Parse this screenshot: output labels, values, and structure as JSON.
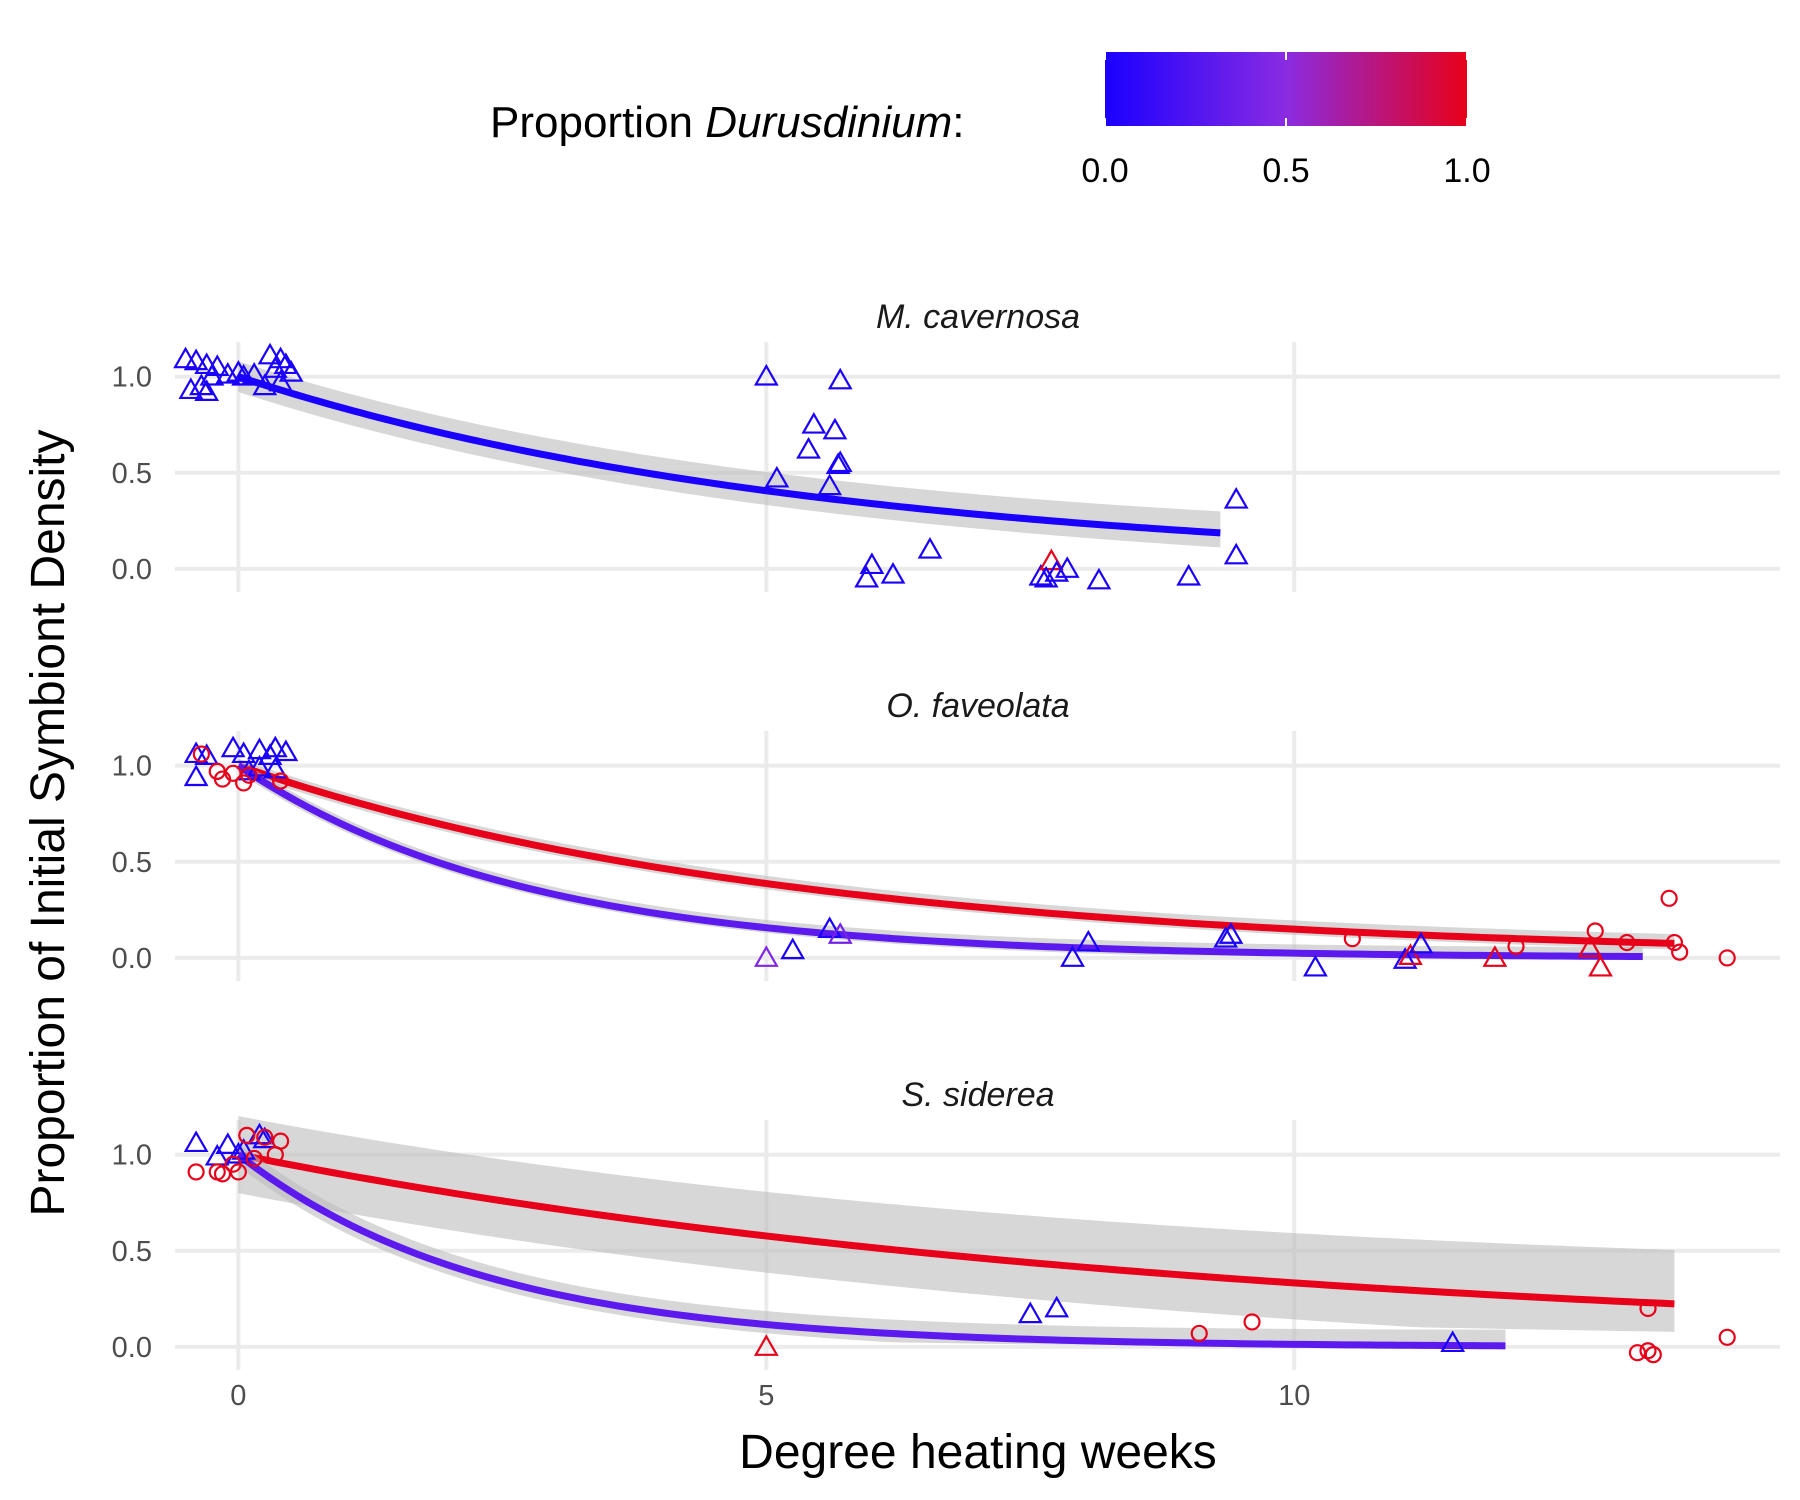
{
  "legend": {
    "title_prefix": "Proportion ",
    "title_italic": "Durusdinium",
    "title_suffix": ":",
    "scale": {
      "low": "#1a00ff",
      "mid": "#8a2be2",
      "high": "#e8001a"
    },
    "ticks": [
      "0.0",
      "0.5",
      "1.0"
    ]
  },
  "chart_data": {
    "type": "scatter",
    "xlabel": "Degree heating weeks",
    "ylabel": "Proportion of Initial Symbiont Density",
    "xlim": [
      -0.6,
      14.6
    ],
    "ylim": [
      -0.12,
      1.18
    ],
    "x_ticks": [
      0,
      5,
      10
    ],
    "y_ticks": [
      0.0,
      0.5,
      1.0
    ],
    "x_tick_labels": [
      "0",
      "5",
      "10"
    ],
    "y_tick_labels": [
      "0.0",
      "0.5",
      "1.0"
    ],
    "grid": true,
    "legend_position": "top",
    "color_scale": "Proportion Durusdinium (0 = blue, 1 = red)",
    "panels": [
      {
        "title": "M. cavernosa",
        "fits": [
          {
            "color_value": 0.0,
            "rate": 0.18,
            "xmax": 9.3,
            "ci": 0.08
          }
        ],
        "points": [
          {
            "x": -0.5,
            "y": 1.09,
            "shape": "triangle",
            "d": 0.0
          },
          {
            "x": -0.4,
            "y": 1.08,
            "shape": "triangle",
            "d": 0.0
          },
          {
            "x": -0.3,
            "y": 1.06,
            "shape": "triangle",
            "d": 0.0
          },
          {
            "x": -0.2,
            "y": 1.05,
            "shape": "triangle",
            "d": 0.0
          },
          {
            "x": -0.45,
            "y": 0.93,
            "shape": "triangle",
            "d": 0.0
          },
          {
            "x": -0.35,
            "y": 0.95,
            "shape": "triangle",
            "d": 0.0
          },
          {
            "x": -0.3,
            "y": 0.92,
            "shape": "triangle",
            "d": 0.0
          },
          {
            "x": -0.25,
            "y": 1.0,
            "shape": "triangle",
            "d": 0.0
          },
          {
            "x": -0.1,
            "y": 1.01,
            "shape": "triangle",
            "d": 0.0
          },
          {
            "x": 0.0,
            "y": 1.02,
            "shape": "triangle",
            "d": 0.0
          },
          {
            "x": 0.05,
            "y": 1.0,
            "shape": "triangle",
            "d": 0.0
          },
          {
            "x": 0.15,
            "y": 1.01,
            "shape": "triangle",
            "d": 0.0
          },
          {
            "x": 0.25,
            "y": 0.95,
            "shape": "triangle",
            "d": 0.0
          },
          {
            "x": 0.3,
            "y": 1.11,
            "shape": "triangle",
            "d": 0.0
          },
          {
            "x": 0.35,
            "y": 1.04,
            "shape": "triangle",
            "d": 0.0
          },
          {
            "x": 0.4,
            "y": 1.09,
            "shape": "triangle",
            "d": 0.0
          },
          {
            "x": 0.45,
            "y": 1.06,
            "shape": "triangle",
            "d": 0.0
          },
          {
            "x": 0.5,
            "y": 1.02,
            "shape": "triangle",
            "d": 0.0
          },
          {
            "x": 0.4,
            "y": 0.97,
            "shape": "triangle",
            "d": 0.0
          },
          {
            "x": 5.0,
            "y": 1.0,
            "shape": "triangle",
            "d": 0.0
          },
          {
            "x": 5.7,
            "y": 0.98,
            "shape": "triangle",
            "d": 0.0
          },
          {
            "x": 5.45,
            "y": 0.75,
            "shape": "triangle",
            "d": 0.0
          },
          {
            "x": 5.65,
            "y": 0.72,
            "shape": "triangle",
            "d": 0.0
          },
          {
            "x": 5.4,
            "y": 0.62,
            "shape": "triangle",
            "d": 0.0
          },
          {
            "x": 5.7,
            "y": 0.55,
            "shape": "triangle",
            "d": 0.0
          },
          {
            "x": 5.68,
            "y": 0.54,
            "shape": "triangle",
            "d": 0.0
          },
          {
            "x": 5.1,
            "y": 0.47,
            "shape": "triangle",
            "d": 0.0
          },
          {
            "x": 5.6,
            "y": 0.43,
            "shape": "triangle",
            "d": 0.0
          },
          {
            "x": 6.0,
            "y": 0.02,
            "shape": "triangle",
            "d": 0.0
          },
          {
            "x": 5.95,
            "y": -0.05,
            "shape": "triangle",
            "d": 0.0
          },
          {
            "x": 6.2,
            "y": -0.03,
            "shape": "triangle",
            "d": 0.0
          },
          {
            "x": 6.55,
            "y": 0.1,
            "shape": "triangle",
            "d": 0.0
          },
          {
            "x": 7.6,
            "y": -0.04,
            "shape": "triangle",
            "d": 0.0
          },
          {
            "x": 7.7,
            "y": 0.04,
            "shape": "triangle",
            "d": 1.0
          },
          {
            "x": 7.65,
            "y": -0.05,
            "shape": "triangle",
            "d": 0.0
          },
          {
            "x": 7.75,
            "y": -0.02,
            "shape": "triangle",
            "d": 0.0
          },
          {
            "x": 7.85,
            "y": 0.0,
            "shape": "triangle",
            "d": 0.0
          },
          {
            "x": 8.15,
            "y": -0.06,
            "shape": "triangle",
            "d": 0.0
          },
          {
            "x": 9.0,
            "y": -0.04,
            "shape": "triangle",
            "d": 0.0
          },
          {
            "x": 9.45,
            "y": 0.36,
            "shape": "triangle",
            "d": 0.0
          },
          {
            "x": 9.45,
            "y": 0.07,
            "shape": "triangle",
            "d": 0.0
          }
        ]
      },
      {
        "title": "O. faveolata",
        "fits": [
          {
            "color_value": 1.0,
            "rate": 0.19,
            "xmax": 13.6,
            "ci": 0.035
          },
          {
            "color_value": 0.3,
            "rate": 0.37,
            "xmax": 13.3,
            "ci": 0.035
          }
        ],
        "points": [
          {
            "x": -0.4,
            "y": 1.06,
            "shape": "triangle",
            "d": 0.0
          },
          {
            "x": -0.3,
            "y": 1.05,
            "shape": "triangle",
            "d": 0.0
          },
          {
            "x": -0.05,
            "y": 1.09,
            "shape": "triangle",
            "d": 0.0
          },
          {
            "x": 0.05,
            "y": 1.06,
            "shape": "triangle",
            "d": 0.0
          },
          {
            "x": 0.2,
            "y": 1.08,
            "shape": "triangle",
            "d": 0.0
          },
          {
            "x": 0.3,
            "y": 1.05,
            "shape": "triangle",
            "d": 0.0
          },
          {
            "x": 0.35,
            "y": 1.09,
            "shape": "triangle",
            "d": 0.0
          },
          {
            "x": 0.45,
            "y": 1.07,
            "shape": "triangle",
            "d": 0.0
          },
          {
            "x": -0.4,
            "y": 0.94,
            "shape": "triangle",
            "d": 0.0
          },
          {
            "x": 0.1,
            "y": 0.97,
            "shape": "triangle",
            "d": 0.0
          },
          {
            "x": 0.2,
            "y": 0.99,
            "shape": "triangle",
            "d": 0.0
          },
          {
            "x": 0.35,
            "y": 0.98,
            "shape": "triangle",
            "d": 0.0
          },
          {
            "x": -0.35,
            "y": 1.06,
            "shape": "circle",
            "d": 1.0
          },
          {
            "x": -0.2,
            "y": 0.97,
            "shape": "circle",
            "d": 1.0
          },
          {
            "x": -0.15,
            "y": 0.93,
            "shape": "circle",
            "d": 1.0
          },
          {
            "x": -0.05,
            "y": 0.96,
            "shape": "circle",
            "d": 1.0
          },
          {
            "x": 0.05,
            "y": 0.91,
            "shape": "circle",
            "d": 1.0
          },
          {
            "x": 0.1,
            "y": 0.95,
            "shape": "circle",
            "d": 1.0
          },
          {
            "x": 0.4,
            "y": 0.92,
            "shape": "circle",
            "d": 1.0
          },
          {
            "x": 5.0,
            "y": 0.0,
            "shape": "triangle",
            "d": 0.45
          },
          {
            "x": 5.25,
            "y": 0.04,
            "shape": "triangle",
            "d": 0.0
          },
          {
            "x": 5.6,
            "y": 0.15,
            "shape": "triangle",
            "d": 0.0
          },
          {
            "x": 5.7,
            "y": 0.12,
            "shape": "triangle",
            "d": 0.4
          },
          {
            "x": 7.9,
            "y": 0.0,
            "shape": "triangle",
            "d": 0.0
          },
          {
            "x": 8.05,
            "y": 0.08,
            "shape": "triangle",
            "d": 0.0
          },
          {
            "x": 9.35,
            "y": 0.1,
            "shape": "triangle",
            "d": 0.0
          },
          {
            "x": 9.4,
            "y": 0.12,
            "shape": "triangle",
            "d": 0.0
          },
          {
            "x": 10.2,
            "y": -0.05,
            "shape": "triangle",
            "d": 0.0
          },
          {
            "x": 10.55,
            "y": 0.1,
            "shape": "circle",
            "d": 1.0
          },
          {
            "x": 11.05,
            "y": -0.01,
            "shape": "triangle",
            "d": 0.0
          },
          {
            "x": 11.1,
            "y": 0.01,
            "shape": "triangle",
            "d": 1.0
          },
          {
            "x": 11.2,
            "y": 0.07,
            "shape": "triangle",
            "d": 0.0
          },
          {
            "x": 11.9,
            "y": 0.0,
            "shape": "triangle",
            "d": 1.0
          },
          {
            "x": 12.1,
            "y": 0.06,
            "shape": "circle",
            "d": 1.0
          },
          {
            "x": 12.8,
            "y": 0.05,
            "shape": "triangle",
            "d": 1.0
          },
          {
            "x": 12.9,
            "y": -0.05,
            "shape": "triangle",
            "d": 1.0
          },
          {
            "x": 12.85,
            "y": 0.14,
            "shape": "circle",
            "d": 1.0
          },
          {
            "x": 13.15,
            "y": 0.08,
            "shape": "circle",
            "d": 1.0
          },
          {
            "x": 13.55,
            "y": 0.31,
            "shape": "circle",
            "d": 1.0
          },
          {
            "x": 13.6,
            "y": 0.08,
            "shape": "circle",
            "d": 1.0
          },
          {
            "x": 13.65,
            "y": 0.03,
            "shape": "circle",
            "d": 1.0
          },
          {
            "x": 14.1,
            "y": 0.0,
            "shape": "circle",
            "d": 1.0
          }
        ]
      },
      {
        "title": "S. siderea",
        "fits": [
          {
            "color_value": 1.0,
            "rate": 0.11,
            "xmax": 13.6,
            "ci": 0.2
          },
          {
            "color_value": 0.3,
            "rate": 0.43,
            "xmax": 12.0,
            "ci": 0.06
          }
        ],
        "points": [
          {
            "x": -0.4,
            "y": 1.06,
            "shape": "triangle",
            "d": 0.0
          },
          {
            "x": -0.1,
            "y": 1.05,
            "shape": "triangle",
            "d": 0.0
          },
          {
            "x": 0.0,
            "y": 1.0,
            "shape": "triangle",
            "d": 0.0
          },
          {
            "x": 0.05,
            "y": 1.02,
            "shape": "triangle",
            "d": 0.0
          },
          {
            "x": 0.2,
            "y": 1.1,
            "shape": "triangle",
            "d": 0.0
          },
          {
            "x": 0.25,
            "y": 1.08,
            "shape": "triangle",
            "d": 0.0
          },
          {
            "x": -0.2,
            "y": 0.99,
            "shape": "triangle",
            "d": 0.0
          },
          {
            "x": -0.4,
            "y": 0.91,
            "shape": "circle",
            "d": 1.0
          },
          {
            "x": -0.2,
            "y": 0.91,
            "shape": "circle",
            "d": 1.0
          },
          {
            "x": -0.15,
            "y": 0.9,
            "shape": "circle",
            "d": 1.0
          },
          {
            "x": -0.05,
            "y": 0.95,
            "shape": "circle",
            "d": 1.0
          },
          {
            "x": 0.0,
            "y": 0.91,
            "shape": "circle",
            "d": 1.0
          },
          {
            "x": 0.08,
            "y": 1.1,
            "shape": "circle",
            "d": 1.0
          },
          {
            "x": 0.15,
            "y": 0.98,
            "shape": "circle",
            "d": 1.0
          },
          {
            "x": 0.25,
            "y": 1.09,
            "shape": "circle",
            "d": 1.0
          },
          {
            "x": 0.35,
            "y": 1.0,
            "shape": "circle",
            "d": 1.0
          },
          {
            "x": 0.4,
            "y": 1.07,
            "shape": "circle",
            "d": 1.0
          },
          {
            "x": 5.0,
            "y": 0.0,
            "shape": "triangle",
            "d": 1.0
          },
          {
            "x": 7.5,
            "y": 0.17,
            "shape": "triangle",
            "d": 0.0
          },
          {
            "x": 7.75,
            "y": 0.2,
            "shape": "triangle",
            "d": 0.0
          },
          {
            "x": 9.1,
            "y": 0.07,
            "shape": "circle",
            "d": 1.0
          },
          {
            "x": 9.6,
            "y": 0.13,
            "shape": "circle",
            "d": 1.0
          },
          {
            "x": 11.5,
            "y": 0.02,
            "shape": "triangle",
            "d": 0.0
          },
          {
            "x": 13.25,
            "y": -0.03,
            "shape": "circle",
            "d": 1.0
          },
          {
            "x": 13.35,
            "y": -0.02,
            "shape": "circle",
            "d": 1.0
          },
          {
            "x": 13.4,
            "y": -0.04,
            "shape": "circle",
            "d": 1.0
          },
          {
            "x": 13.35,
            "y": 0.2,
            "shape": "circle",
            "d": 1.0
          },
          {
            "x": 14.1,
            "y": 0.05,
            "shape": "circle",
            "d": 1.0
          }
        ]
      }
    ]
  }
}
